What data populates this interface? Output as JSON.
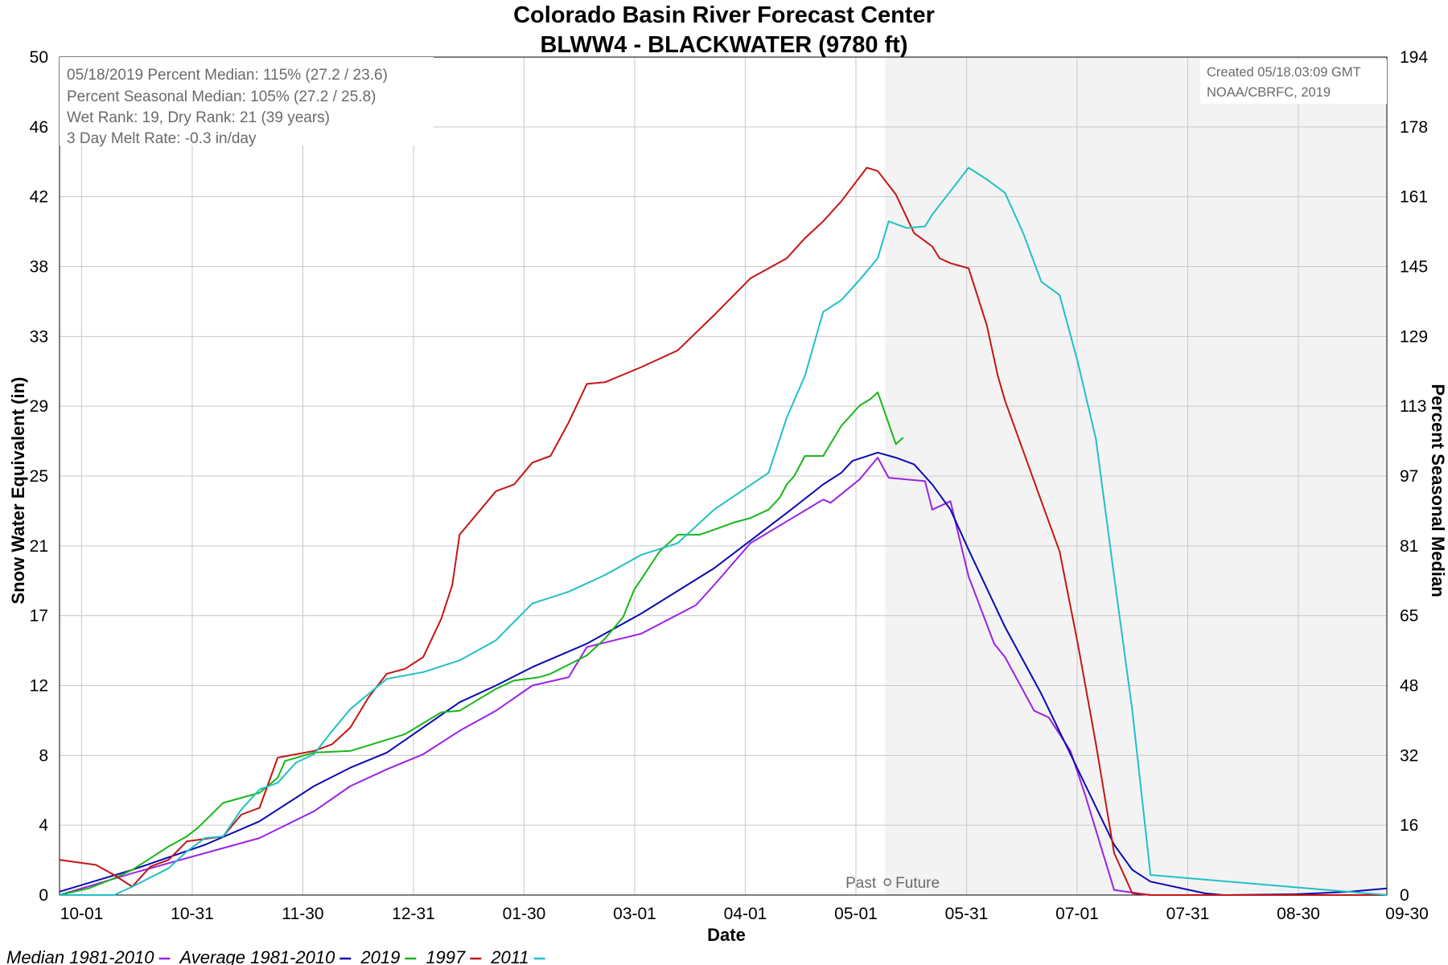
{
  "chart_data": {
    "type": "line",
    "title": "Colorado Basin River Forecast Center",
    "subtitle": "BLWW4 - BLACKWATER (9780 ft)",
    "xlabel": "Date",
    "ylabel": "Snow Water Equivalent (in)",
    "y2label": "Percent Seasonal Median",
    "x_ticks": [
      "10-01",
      "10-31",
      "11-30",
      "12-31",
      "01-30",
      "03-01",
      "04-01",
      "05-01",
      "05-31",
      "07-01",
      "07-31",
      "08-30",
      "09-30"
    ],
    "y_ticks": [
      "0",
      "4",
      "8",
      "12",
      "17",
      "21",
      "25",
      "29",
      "33",
      "38",
      "42",
      "46",
      "50"
    ],
    "y2_ticks": [
      "0",
      "16",
      "32",
      "48",
      "65",
      "81",
      "97",
      "113",
      "129",
      "145",
      "161",
      "178",
      "194"
    ],
    "ylim": [
      0,
      50
    ],
    "xlim_days": [
      0,
      365
    ],
    "grid": true,
    "info_lines": [
      "05/18/2019 Percent Median: 115% (27.2 / 23.6)",
      "Percent Seasonal Median: 105% (27.2 / 25.8)",
      "Wet Rank: 19, Dry Rank: 21  (39 years)",
      "3 Day Melt Rate: -0.3 in/day"
    ],
    "created_lines": [
      "Created 05/18.03:09 GMT",
      "NOAA/CBRFC, 2019"
    ],
    "past_label": "Past",
    "future_label": "Future",
    "future_start_day": 227,
    "legend_position": "bottom-left",
    "series": [
      {
        "name": "Median 1981-2010",
        "color": "#9a23e6",
        "x": [
          0,
          20,
          40,
          55,
          70,
          80,
          90,
          100,
          110,
          120,
          130,
          140,
          145,
          160,
          175,
          180,
          190,
          200,
          210,
          212,
          220,
          225,
          228,
          238,
          240,
          245,
          250,
          257,
          260,
          268,
          272,
          278,
          282,
          290,
          300,
          365
        ],
        "y": [
          0,
          1.3,
          2.5,
          3.4,
          5,
          6.5,
          7.5,
          8.4,
          9.8,
          11,
          12.5,
          13,
          14.8,
          15.6,
          17.3,
          18.5,
          21,
          22.3,
          23.6,
          23.4,
          24.8,
          26.1,
          24.9,
          24.7,
          23,
          23.5,
          19,
          15,
          14.2,
          11,
          10.6,
          8.6,
          6,
          0.3,
          0,
          0
        ]
      },
      {
        "name": "Average 1981-2010",
        "color": "#0a0ab2",
        "x": [
          0,
          20,
          40,
          55,
          70,
          80,
          90,
          100,
          110,
          120,
          130,
          145,
          160,
          180,
          200,
          210,
          215,
          218,
          225,
          230,
          235,
          240,
          245,
          250,
          260,
          270,
          280,
          290,
          295,
          300,
          315,
          320,
          340,
          355,
          365
        ],
        "y": [
          0.2,
          1.5,
          3,
          4.4,
          6.5,
          7.6,
          8.5,
          10,
          11.5,
          12.5,
          13.6,
          15,
          16.8,
          19.5,
          22.8,
          24.5,
          25.2,
          25.9,
          26.4,
          26.1,
          25.7,
          24.5,
          23,
          20.6,
          16,
          12,
          7.5,
          3,
          1.5,
          0.8,
          0.1,
          0,
          0.05,
          0.2,
          0.4
        ]
      },
      {
        "name": "2019",
        "color": "#18b718",
        "x": [
          0,
          8,
          15,
          20,
          30,
          35,
          38,
          45,
          55,
          60,
          62,
          70,
          80,
          95,
          105,
          110,
          120,
          125,
          132,
          135,
          145,
          150,
          155,
          158,
          165,
          170,
          176,
          180,
          185,
          190,
          195,
          198,
          200,
          202,
          205,
          210,
          215,
          220,
          223,
          225,
          230,
          232
        ],
        "y": [
          0,
          0.4,
          1,
          1.5,
          2.9,
          3.5,
          4,
          5.5,
          6.1,
          7,
          8,
          8.5,
          8.6,
          9.6,
          10.9,
          11,
          12.3,
          12.8,
          13,
          13.2,
          14.3,
          15.3,
          16.6,
          18.2,
          20.5,
          21.5,
          21.5,
          21.8,
          22.2,
          22.5,
          23,
          23.7,
          24.5,
          25,
          26.2,
          26.2,
          28,
          29.2,
          29.6,
          30,
          26.9,
          27.3
        ]
      },
      {
        "name": "1997",
        "color": "#c51515",
        "x": [
          0,
          10,
          15,
          20,
          25,
          30,
          35,
          45,
          50,
          55,
          60,
          70,
          75,
          80,
          85,
          90,
          95,
          100,
          105,
          108,
          110,
          120,
          125,
          130,
          135,
          140,
          145,
          150,
          160,
          170,
          180,
          190,
          200,
          205,
          210,
          215,
          222,
          225,
          230,
          235,
          240,
          242,
          245,
          250,
          255,
          258,
          260,
          265,
          270,
          275,
          280,
          285,
          290,
          295,
          300,
          365
        ],
        "y": [
          2.1,
          1.8,
          1.2,
          0.5,
          1.7,
          2.1,
          3.2,
          3.5,
          4.8,
          5.2,
          8.2,
          8.6,
          9,
          10,
          11.8,
          13.2,
          13.5,
          14.2,
          16.5,
          18.5,
          21.5,
          24.1,
          24.5,
          25.8,
          26.2,
          28.2,
          30.5,
          30.6,
          31.5,
          32.5,
          34.6,
          36.8,
          38,
          39.2,
          40.2,
          41.4,
          43.4,
          43.2,
          41.8,
          39.5,
          38.7,
          38,
          37.7,
          37.4,
          34,
          31,
          29.5,
          26.5,
          23.5,
          20.5,
          15,
          9,
          2.5,
          0.1,
          0,
          0
        ]
      },
      {
        "name": "2011",
        "color": "#20c0c6",
        "x": [
          0,
          15,
          20,
          30,
          35,
          40,
          45,
          50,
          55,
          60,
          65,
          70,
          75,
          80,
          90,
          100,
          110,
          120,
          130,
          140,
          150,
          160,
          170,
          180,
          195,
          200,
          205,
          210,
          215,
          220,
          225,
          228,
          233,
          238,
          240,
          245,
          250,
          255,
          260,
          265,
          270,
          275,
          280,
          285,
          290,
          295,
          300,
          365
        ],
        "y": [
          0,
          0,
          0.5,
          1.6,
          2.6,
          3.4,
          3.5,
          5.1,
          6.3,
          6.7,
          7.9,
          8.4,
          9.8,
          11.1,
          12.9,
          13.3,
          14,
          15.2,
          17.4,
          18.1,
          19.1,
          20.3,
          21,
          23,
          25.2,
          28.5,
          31,
          34.8,
          35.5,
          36.7,
          38,
          40.2,
          39.8,
          39.9,
          40.6,
          42,
          43.4,
          42.7,
          41.9,
          39.5,
          36.6,
          35.8,
          31.8,
          27.2,
          19,
          11,
          1.2,
          0
        ]
      }
    ]
  }
}
